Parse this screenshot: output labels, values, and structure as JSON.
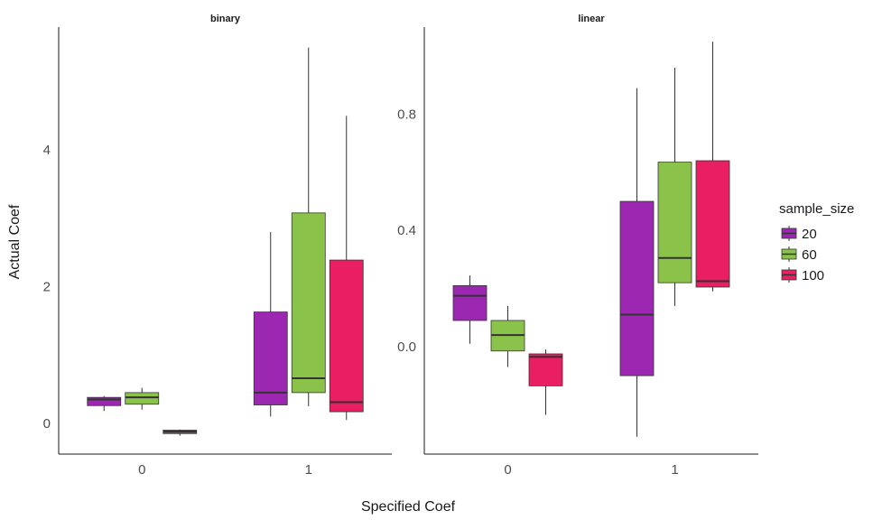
{
  "chart_data": {
    "type": "boxplot",
    "xlabel": "Specified Coef",
    "ylabel": "Actual Coef",
    "legend": {
      "title": "sample_size",
      "position": "right",
      "entries": [
        {
          "label": "20",
          "color": "#9c27b0"
        },
        {
          "label": "60",
          "color": "#8bc34a"
        },
        {
          "label": "100",
          "color": "#e91e63"
        }
      ]
    },
    "grid": false,
    "panels": [
      {
        "strip": "binary",
        "categories": [
          "0",
          "1"
        ],
        "ylim": [
          -0.45,
          5.8
        ],
        "yticks": [
          0,
          2,
          4
        ],
        "boxes": [
          {
            "category": "0",
            "group": "20",
            "min": 0.18,
            "q1": 0.26,
            "median": 0.35,
            "q3": 0.38,
            "max": 0.4
          },
          {
            "category": "0",
            "group": "60",
            "min": 0.2,
            "q1": 0.28,
            "median": 0.38,
            "q3": 0.45,
            "max": 0.52
          },
          {
            "category": "0",
            "group": "100",
            "min": -0.18,
            "q1": -0.15,
            "median": -0.12,
            "q3": -0.1,
            "max": -0.09
          },
          {
            "category": "1",
            "group": "20",
            "min": 0.1,
            "q1": 0.27,
            "median": 0.45,
            "q3": 1.63,
            "max": 2.8
          },
          {
            "category": "1",
            "group": "60",
            "min": 0.25,
            "q1": 0.45,
            "median": 0.66,
            "q3": 3.08,
            "max": 5.5
          },
          {
            "category": "1",
            "group": "100",
            "min": 0.05,
            "q1": 0.17,
            "median": 0.31,
            "q3": 2.39,
            "max": 4.5
          }
        ]
      },
      {
        "strip": "linear",
        "categories": [
          "0",
          "1"
        ],
        "ylim": [
          -0.37,
          1.1
        ],
        "yticks": [
          0.0,
          0.4,
          0.8
        ],
        "yticklabels": [
          "0.0",
          "0.4",
          "0.8"
        ],
        "boxes": [
          {
            "category": "0",
            "group": "20",
            "min": 0.01,
            "q1": 0.09,
            "median": 0.175,
            "q3": 0.21,
            "max": 0.245
          },
          {
            "category": "0",
            "group": "60",
            "min": -0.07,
            "q1": -0.015,
            "median": 0.04,
            "q3": 0.09,
            "max": 0.14
          },
          {
            "category": "0",
            "group": "100",
            "min": -0.235,
            "q1": -0.135,
            "median": -0.035,
            "q3": -0.025,
            "max": -0.01
          },
          {
            "category": "1",
            "group": "20",
            "min": -0.31,
            "q1": -0.1,
            "median": 0.11,
            "q3": 0.5,
            "max": 0.89
          },
          {
            "category": "1",
            "group": "60",
            "min": 0.14,
            "q1": 0.22,
            "median": 0.305,
            "q3": 0.635,
            "max": 0.96
          },
          {
            "category": "1",
            "group": "100",
            "min": 0.19,
            "q1": 0.205,
            "median": 0.225,
            "q3": 0.64,
            "max": 1.05
          }
        ]
      }
    ]
  }
}
